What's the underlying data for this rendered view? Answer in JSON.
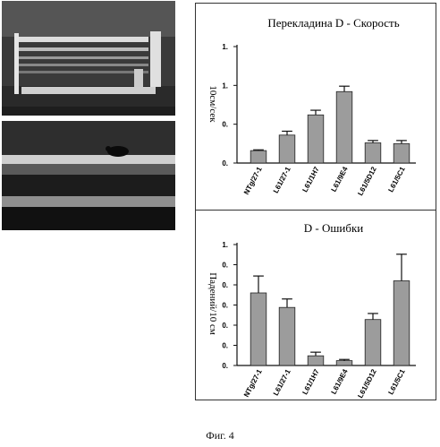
{
  "figure_caption": "Фиг. 4",
  "chart_data": [
    {
      "type": "bar",
      "title": "Перекладина D - Скорость",
      "ylabel": "10см/сек",
      "xlabel": "",
      "categories": [
        "NTg/27-1",
        "L61/27-1",
        "L61/1H7",
        "L61/9E4",
        "L61/5D12",
        "L61/5C1"
      ],
      "values": [
        0.16,
        0.36,
        0.62,
        0.92,
        0.26,
        0.25
      ],
      "errors": [
        0.01,
        0.05,
        0.06,
        0.07,
        0.03,
        0.04
      ],
      "ylim": [
        0,
        1.5
      ],
      "yticks": [
        0,
        0.5,
        1,
        1.5
      ],
      "ytick_labels": [
        "0.",
        "0.",
        "1.",
        "1."
      ],
      "grid": false,
      "bar_color": "#9c9c9c"
    },
    {
      "type": "bar",
      "title": "D - Ошибки",
      "ylabel": "Падений/10 см",
      "xlabel": "",
      "categories": [
        "NTg/27-1",
        "L61/27-1",
        "L61/1H7",
        "L61/9E4",
        "L61/5D12",
        "L61/5C1"
      ],
      "values": [
        0.6,
        0.48,
        0.08,
        0.04,
        0.38,
        0.7
      ],
      "errors": [
        0.14,
        0.07,
        0.03,
        0.01,
        0.05,
        0.22
      ],
      "ylim": [
        0,
        1.0
      ],
      "yticks": [
        0,
        0.1,
        0.2,
        0.3,
        0.4,
        0.5,
        0.6,
        0.7,
        0.8,
        0.9,
        1.0
      ],
      "ytick_labels": [
        "0.",
        "0.",
        "0.",
        "0.",
        "0.",
        "0.",
        "1."
      ],
      "grid": false,
      "bar_color": "#9c9c9c"
    }
  ]
}
